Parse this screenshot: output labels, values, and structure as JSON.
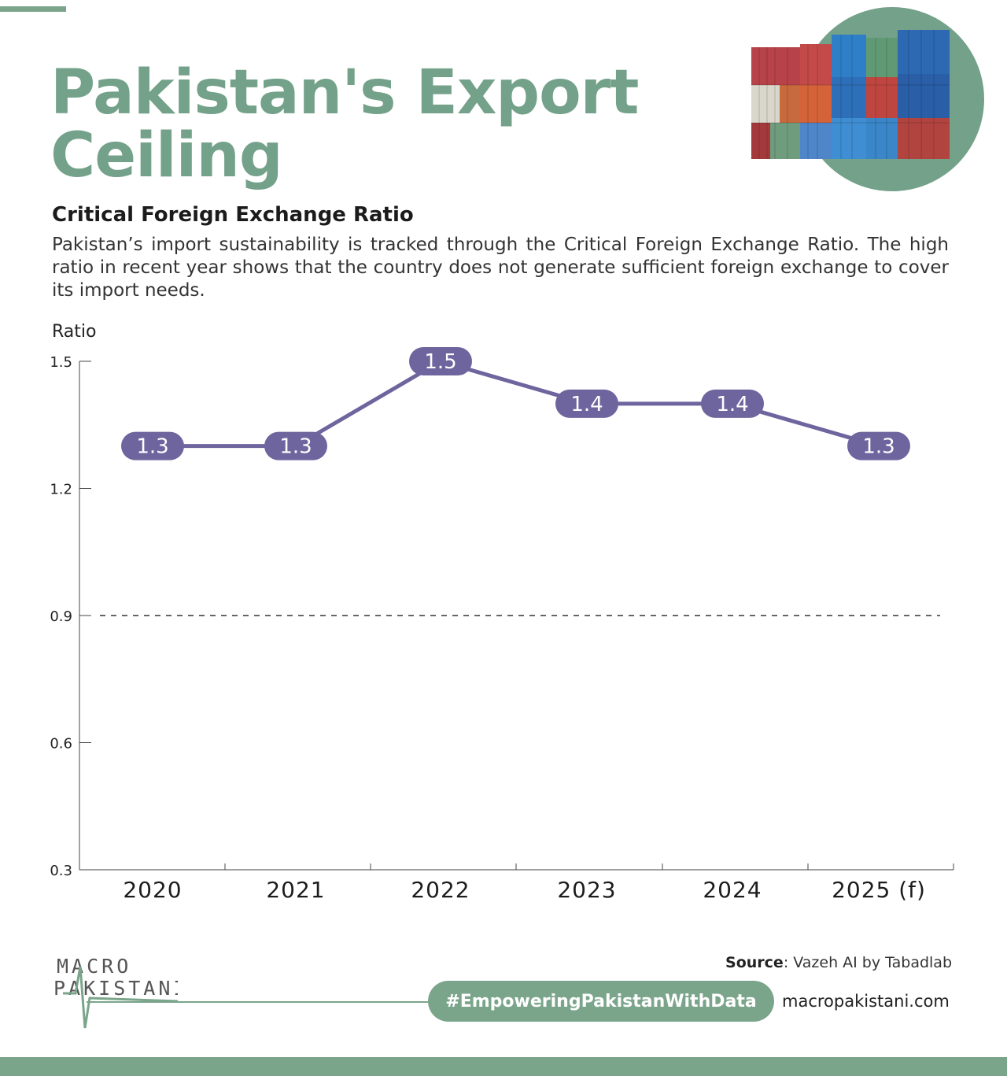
{
  "header": {
    "title": "Pakistan's Export Ceiling",
    "subtitle": "Critical Foreign Exchange Ratio",
    "description": "Pakistan’s import sustainability is tracked through the Critical Foreign Exchange Ratio. The high ratio in recent year shows that the country does not generate sufficient foreign exchange to cover its import needs."
  },
  "illustration": {
    "icon": "shipping-containers-icon"
  },
  "colors": {
    "accent": "#74a18a",
    "line": "#6f659e",
    "threshold": "#333333"
  },
  "chart_data": {
    "type": "line",
    "ylabel": "Ratio",
    "xlabel": "",
    "categories": [
      "2020",
      "2021",
      "2022",
      "2023",
      "2024",
      "2025 (f)"
    ],
    "series": [
      {
        "values": [
          1.3,
          1.3,
          1.5,
          1.4,
          1.4,
          1.3
        ]
      }
    ],
    "data_labels": [
      "1.3",
      "1.3",
      "1.5",
      "1.4",
      "1.4",
      "1.3"
    ],
    "ylim": [
      0.3,
      1.5
    ],
    "yticks": [
      1.5,
      1.2,
      0.9,
      0.6,
      0.3
    ],
    "ytick_labels": [
      "1.5",
      "1.2",
      "0.9",
      "0.6",
      "0.3"
    ],
    "reference_line": {
      "y": 0.9,
      "style": "dashed"
    },
    "grid": false
  },
  "footer": {
    "logo_top": "MACRO",
    "logo_bottom": "PAKISTANI",
    "source_label": "Source",
    "source_text": ": Vazeh AI by Tabadlab",
    "hashtag": "#EmpoweringPakistanWithData",
    "website": "macropakistani.com"
  }
}
